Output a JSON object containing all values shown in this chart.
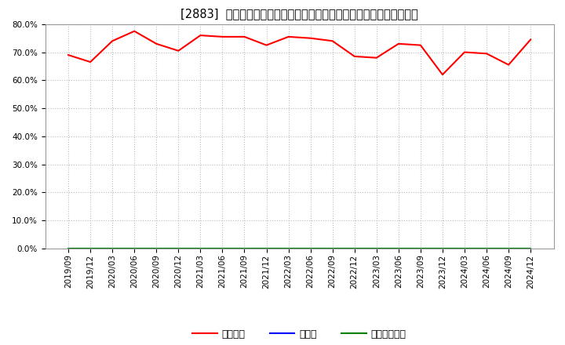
{
  "title": "[2883]  自己資本、のれん、繰延税金資産の総資産に対する比率の推移",
  "x_labels": [
    "2019/09",
    "2019/12",
    "2020/03",
    "2020/06",
    "2020/09",
    "2020/12",
    "2021/03",
    "2021/06",
    "2021/09",
    "2021/12",
    "2022/03",
    "2022/06",
    "2022/09",
    "2022/12",
    "2023/03",
    "2023/06",
    "2023/09",
    "2023/12",
    "2024/03",
    "2024/06",
    "2024/09",
    "2024/12"
  ],
  "equity_ratio": [
    69.0,
    66.5,
    74.0,
    77.5,
    73.0,
    70.5,
    76.0,
    75.5,
    75.5,
    72.5,
    75.5,
    75.0,
    74.0,
    68.5,
    68.0,
    73.0,
    72.5,
    62.0,
    70.0,
    69.5,
    65.5,
    74.5
  ],
  "noren_ratio": [
    0.0,
    0.0,
    0.0,
    0.0,
    0.0,
    0.0,
    0.0,
    0.0,
    0.0,
    0.0,
    0.0,
    0.0,
    0.0,
    0.0,
    0.0,
    0.0,
    0.0,
    0.0,
    0.0,
    0.0,
    0.0,
    0.0
  ],
  "deferred_ratio": [
    0.0,
    0.0,
    0.0,
    0.0,
    0.0,
    0.0,
    0.0,
    0.0,
    0.0,
    0.0,
    0.0,
    0.0,
    0.0,
    0.0,
    0.0,
    0.0,
    0.0,
    0.0,
    0.0,
    0.0,
    0.0,
    0.0
  ],
  "equity_color": "#ff0000",
  "noren_color": "#0000ff",
  "deferred_color": "#008000",
  "bg_color": "#ffffff",
  "plot_bg_color": "#ffffff",
  "grid_color": "#bbbbbb",
  "ylim": [
    0.0,
    80.0
  ],
  "yticks": [
    0.0,
    10.0,
    20.0,
    30.0,
    40.0,
    50.0,
    60.0,
    70.0,
    80.0
  ],
  "legend_labels": [
    "自己資本",
    "のれん",
    "繰延税金資産"
  ],
  "title_fontsize": 10.5,
  "tick_fontsize": 7.5,
  "legend_fontsize": 9
}
